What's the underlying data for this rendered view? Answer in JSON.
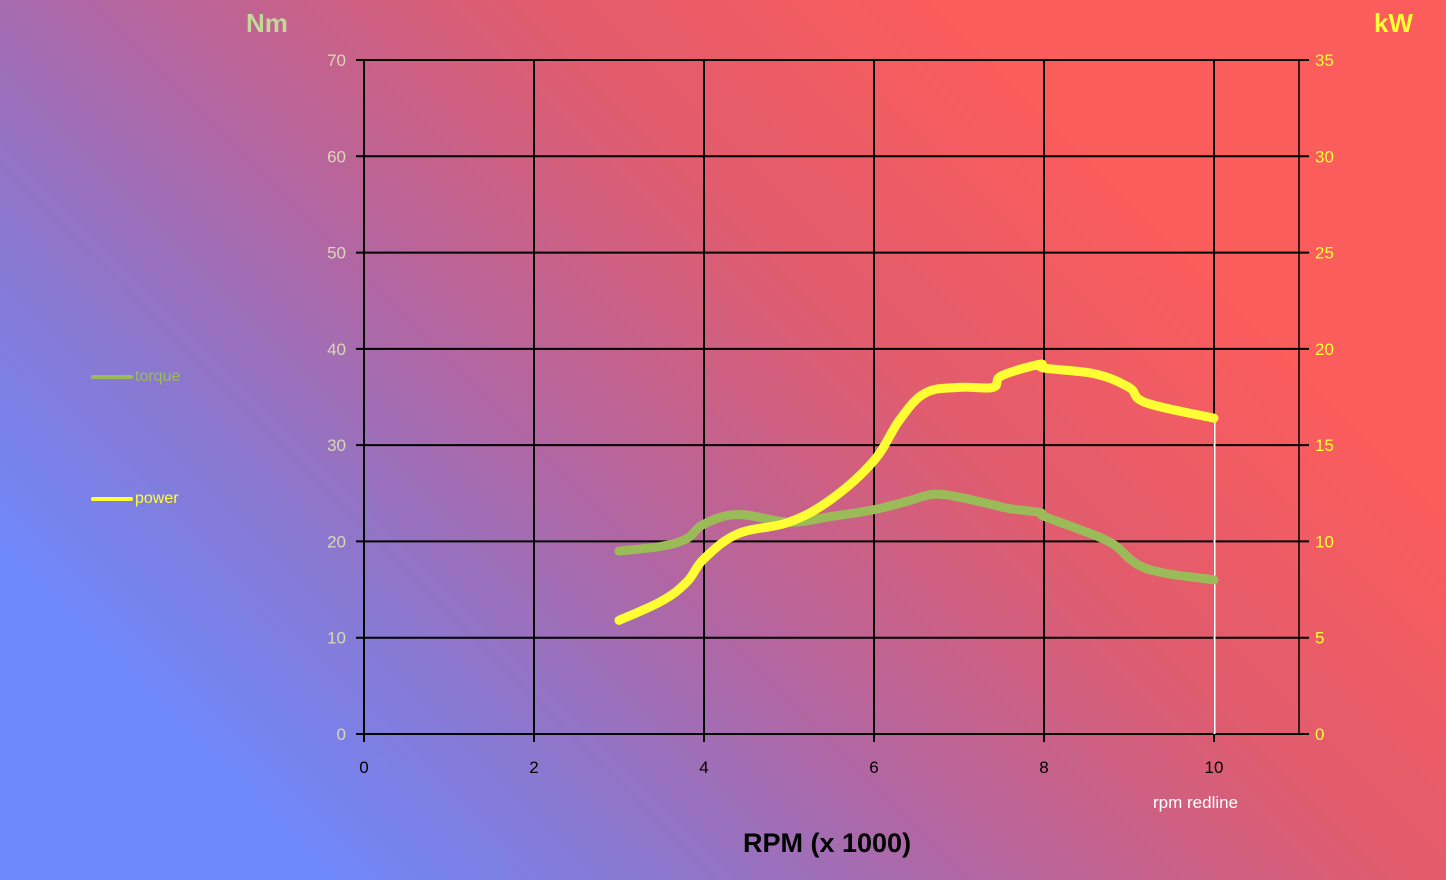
{
  "chart_data": {
    "type": "line",
    "title": "",
    "xlabel": "RPM (x 1000)",
    "ylabel_left": "Nm",
    "ylabel_right": "kW",
    "xlim": [
      0,
      11
    ],
    "ylim_left": [
      0,
      70
    ],
    "ylim_right": [
      0,
      35
    ],
    "x_ticks": [
      0,
      2,
      4,
      6,
      8,
      10
    ],
    "y_ticks_left": [
      0,
      10,
      20,
      30,
      40,
      50,
      60,
      70
    ],
    "y_ticks_right": [
      0,
      5,
      10,
      15,
      20,
      25,
      30,
      35
    ],
    "grid": true,
    "legend_position": "left",
    "annotations": [
      {
        "text": "rpm redline",
        "x": 10
      }
    ],
    "series": [
      {
        "name": "torque",
        "axis": "left",
        "color": "#9bbb59",
        "x": [
          3.0,
          3.5,
          3.8,
          4.0,
          4.4,
          5.0,
          5.5,
          6.0,
          6.4,
          6.7,
          7.0,
          7.4,
          7.6,
          7.95,
          8.0,
          8.4,
          8.8,
          9.2,
          10.0
        ],
        "values": [
          19.0,
          19.5,
          20.3,
          21.8,
          22.8,
          22.0,
          22.6,
          23.3,
          24.2,
          24.9,
          24.6,
          23.8,
          23.4,
          23.0,
          22.6,
          21.3,
          19.8,
          17.2,
          16.0
        ]
      },
      {
        "name": "power",
        "axis": "right",
        "color": "#ffff33",
        "x": [
          3.0,
          3.5,
          3.8,
          4.0,
          4.4,
          5.0,
          5.5,
          6.0,
          6.3,
          6.6,
          7.0,
          7.4,
          7.5,
          7.95,
          8.0,
          8.6,
          9.0,
          9.2,
          10.0
        ],
        "values": [
          5.9,
          6.9,
          7.9,
          9.1,
          10.4,
          11.0,
          12.2,
          14.2,
          16.3,
          17.7,
          18.0,
          18.0,
          18.6,
          19.2,
          19.0,
          18.7,
          18.0,
          17.2,
          16.4
        ]
      }
    ]
  },
  "axes": {
    "left_unit": "Nm",
    "right_unit": "kW",
    "x_title": "RPM (x 1000)",
    "redline_label": "rpm redline"
  },
  "legend": {
    "torque_label": "torque",
    "power_label": "power"
  },
  "colors": {
    "torque": "#9bbb59",
    "power": "#ffff33",
    "left_tick": "#d8d8b8",
    "right_tick": "#ffff33",
    "grid": "#000000"
  }
}
